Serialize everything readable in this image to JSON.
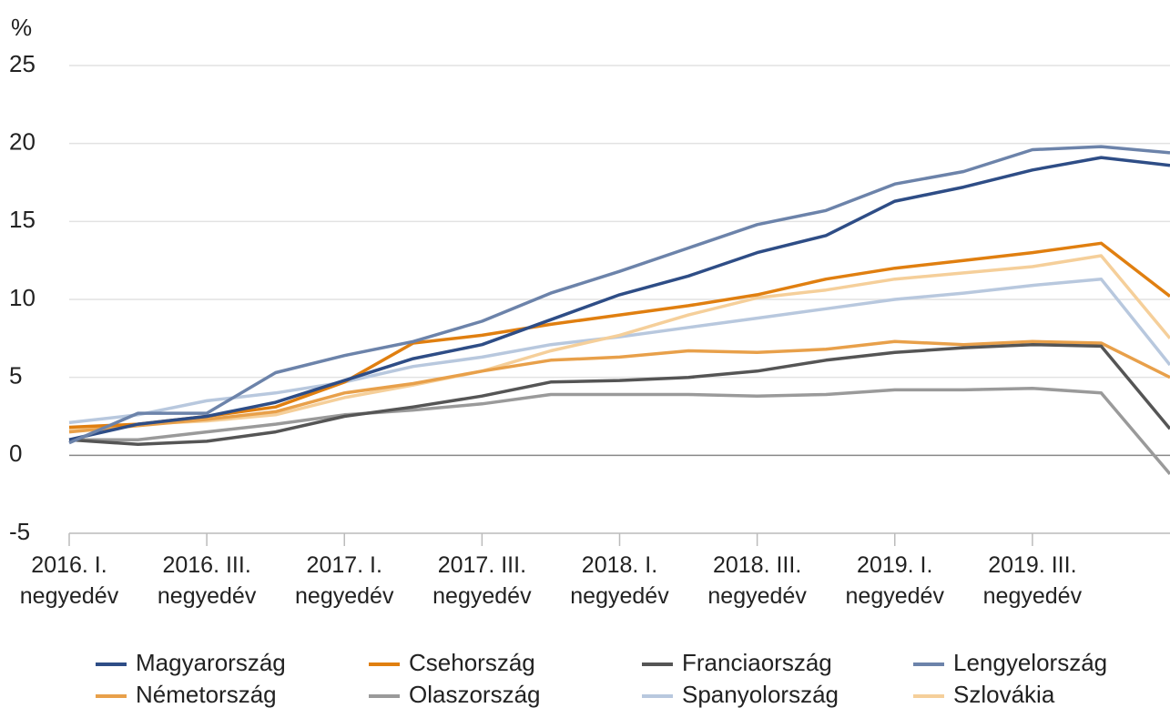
{
  "chart_data": {
    "type": "line",
    "y_label": "%",
    "categories": [
      "2016. I. negyedév",
      null,
      "2016. III. negyedév",
      null,
      "2017. I. negyedév",
      null,
      "2017. III. negyedév",
      null,
      "2018. I. negyedév",
      null,
      "2018. III. negyedév",
      null,
      "2019. I. negyedév",
      null,
      "2019. III. negyedév",
      null,
      null
    ],
    "ylim": [
      -5,
      25
    ],
    "yticks": [
      -5,
      0,
      5,
      10,
      15,
      20,
      25
    ],
    "grid": true,
    "legend": "bottom",
    "series": [
      {
        "name": "Magyarország",
        "color": "#2e4d86",
        "values": [
          1.0,
          2.0,
          2.5,
          3.4,
          4.8,
          6.2,
          7.1,
          8.7,
          10.3,
          11.5,
          13.0,
          14.1,
          16.3,
          17.2,
          18.3,
          19.1,
          18.6
        ]
      },
      {
        "name": "Csehország",
        "color": "#e07f10",
        "values": [
          1.8,
          2.0,
          2.5,
          3.1,
          4.7,
          7.2,
          7.7,
          8.4,
          9.0,
          9.6,
          10.3,
          11.3,
          12.0,
          12.5,
          13.0,
          13.6,
          10.2
        ]
      },
      {
        "name": "Franciaország",
        "color": "#555555",
        "values": [
          1.0,
          0.7,
          0.9,
          1.5,
          2.5,
          3.1,
          3.8,
          4.7,
          4.8,
          5.0,
          5.4,
          6.1,
          6.6,
          6.9,
          7.1,
          7.0,
          1.7
        ]
      },
      {
        "name": "Lengyelország",
        "color": "#6c83aa",
        "values": [
          0.8,
          2.7,
          2.7,
          5.3,
          6.4,
          7.3,
          8.6,
          10.4,
          11.8,
          13.3,
          14.8,
          15.7,
          17.4,
          18.2,
          19.6,
          19.8,
          19.4
        ]
      },
      {
        "name": "Németország",
        "color": "#e8a04a",
        "values": [
          1.5,
          1.9,
          2.3,
          2.8,
          4.0,
          4.6,
          5.4,
          6.1,
          6.3,
          6.7,
          6.6,
          6.8,
          7.3,
          7.1,
          7.3,
          7.2,
          5.0
        ]
      },
      {
        "name": "Olaszország",
        "color": "#9a9a9a",
        "values": [
          1.0,
          1.0,
          1.5,
          2.0,
          2.6,
          2.9,
          3.3,
          3.9,
          3.9,
          3.9,
          3.8,
          3.9,
          4.2,
          4.2,
          4.3,
          4.0,
          -1.2
        ]
      },
      {
        "name": "Spanyolország",
        "color": "#b8c8de",
        "values": [
          2.1,
          2.6,
          3.5,
          4.0,
          4.7,
          5.7,
          6.3,
          7.1,
          7.6,
          8.2,
          8.8,
          9.4,
          10.0,
          10.4,
          10.9,
          11.3,
          5.8
        ]
      },
      {
        "name": "Szlovákia",
        "color": "#f5cf9a",
        "values": [
          1.6,
          2.0,
          2.2,
          2.6,
          3.7,
          4.5,
          5.4,
          6.7,
          7.7,
          9.0,
          10.1,
          10.6,
          11.3,
          11.7,
          12.1,
          12.8,
          7.5
        ]
      }
    ]
  }
}
